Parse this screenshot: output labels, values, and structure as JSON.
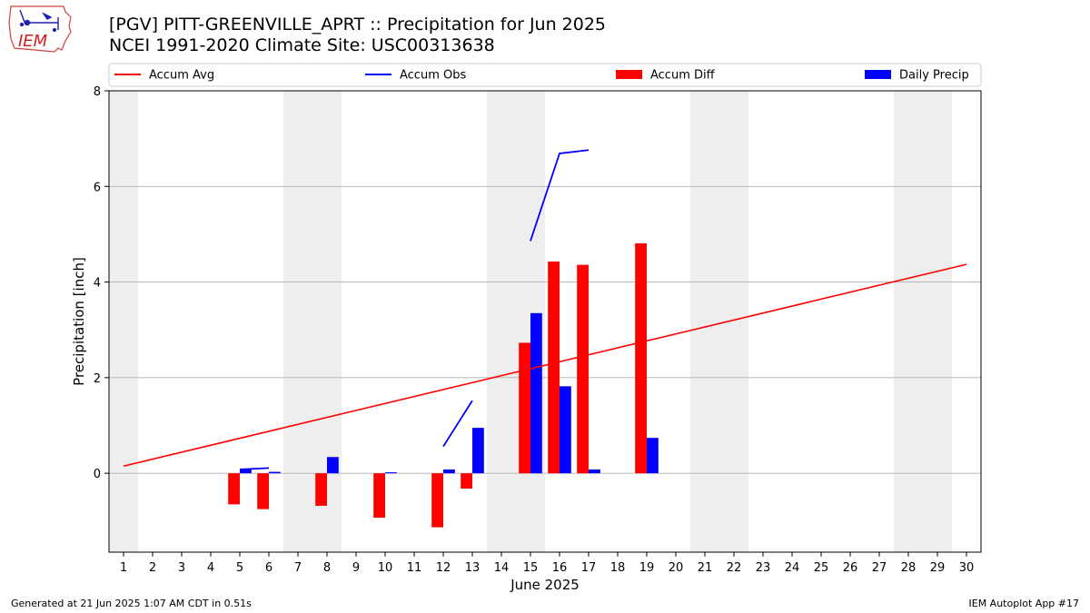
{
  "logo": {
    "text": "IEM"
  },
  "title": {
    "line1": "[PGV] PITT-GREENVILLE_APRT :: Precipitation for Jun 2025",
    "line2": "NCEI 1991-2020 Climate Site: USC00313638"
  },
  "footer": {
    "left": "Generated at 21 Jun 2025 1:07 AM CDT in 0.51s",
    "right": "IEM Autoplot App #17"
  },
  "colors": {
    "avg": "#ff0000",
    "obs": "#0000ff",
    "diff": "#ff0000",
    "daily": "#0000ff",
    "weekend": "#eeeeee",
    "grid": "#b0b0b0"
  },
  "chart_data": {
    "type": "bar",
    "xlabel": "June 2025",
    "ylabel": "Precipitation [inch]",
    "xlim": [
      0.5,
      30.5
    ],
    "ylim": [
      -1.65,
      8
    ],
    "yticks": [
      0,
      2,
      4,
      6,
      8
    ],
    "days": [
      1,
      2,
      3,
      4,
      5,
      6,
      7,
      8,
      9,
      10,
      11,
      12,
      13,
      14,
      15,
      16,
      17,
      18,
      19,
      20,
      21,
      22,
      23,
      24,
      25,
      26,
      27,
      28,
      29,
      30
    ],
    "weekends": [
      [
        1
      ],
      [
        7,
        8
      ],
      [
        14,
        15
      ],
      [
        21,
        22
      ],
      [
        28,
        29
      ]
    ],
    "legend": {
      "placement": "top",
      "entries": [
        {
          "label": "Accum Avg",
          "kind": "line",
          "color": "#ff0000"
        },
        {
          "label": "Accum Obs",
          "kind": "line",
          "color": "#0000ff"
        },
        {
          "label": "Accum Diff",
          "kind": "bar",
          "color": "#ff0000"
        },
        {
          "label": "Daily Precip",
          "kind": "bar",
          "color": "#0000ff"
        }
      ]
    },
    "series": [
      {
        "name": "Accum Avg",
        "kind": "line",
        "x": [
          1,
          30
        ],
        "y": [
          0.15,
          4.37
        ]
      },
      {
        "name": "Accum Obs",
        "kind": "line-segments",
        "segments": [
          {
            "x": [
              5,
              6
            ],
            "y": [
              0.08,
              0.11
            ]
          },
          {
            "x": [
              12,
              13
            ],
            "y": [
              0.56,
              1.52
            ]
          },
          {
            "x": [
              15,
              16,
              17
            ],
            "y": [
              4.86,
              6.69,
              6.76
            ]
          }
        ]
      },
      {
        "name": "Accum Diff",
        "kind": "bar",
        "x": [
          5,
          6,
          8,
          10,
          12,
          13,
          15,
          16,
          17,
          19
        ],
        "y": [
          -0.65,
          -0.75,
          -0.68,
          -0.93,
          -1.13,
          -0.32,
          2.73,
          4.43,
          4.36,
          4.81
        ]
      },
      {
        "name": "Daily Precip",
        "kind": "bar",
        "x": [
          5,
          6,
          8,
          10,
          12,
          13,
          15,
          16,
          17,
          19
        ],
        "y": [
          0.08,
          0.03,
          0.34,
          0.02,
          0.08,
          0.95,
          3.35,
          1.82,
          0.08,
          0.74
        ]
      }
    ]
  }
}
